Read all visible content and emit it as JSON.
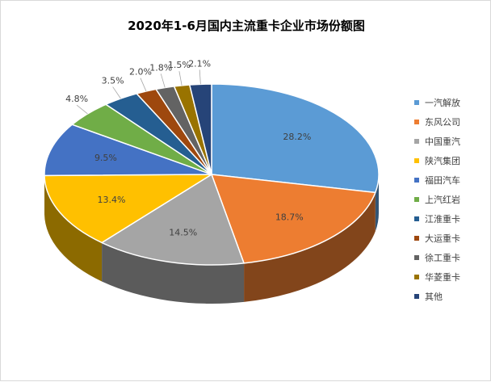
{
  "chart_data": {
    "type": "pie",
    "title": "2020年1-6月国内主流重卡企业市场份额图",
    "categories": [
      "一汽解放",
      "东风公司",
      "中国重汽",
      "陕汽集团",
      "福田汽车",
      "上汽红岩",
      "江淮重卡",
      "大运重卡",
      "徐工重卡",
      "华菱重卡",
      "其他"
    ],
    "values": [
      28.2,
      18.7,
      14.5,
      13.4,
      9.5,
      4.8,
      3.5,
      2.0,
      1.8,
      1.5,
      2.1
    ],
    "labels": [
      "28.2%",
      "18.7%",
      "14.5%",
      "13.4%",
      "9.5%",
      "4.8%",
      "3.5%",
      "2.0%",
      "1.8%",
      "1.5%",
      "2.1%"
    ],
    "colors": [
      "#5b9bd5",
      "#ed7d31",
      "#a5a5a5",
      "#ffc000",
      "#4472c4",
      "#70ad47",
      "#255e91",
      "#9e480e",
      "#636363",
      "#997300",
      "#264478"
    ],
    "style": "3d-pie",
    "legend_position": "right"
  }
}
